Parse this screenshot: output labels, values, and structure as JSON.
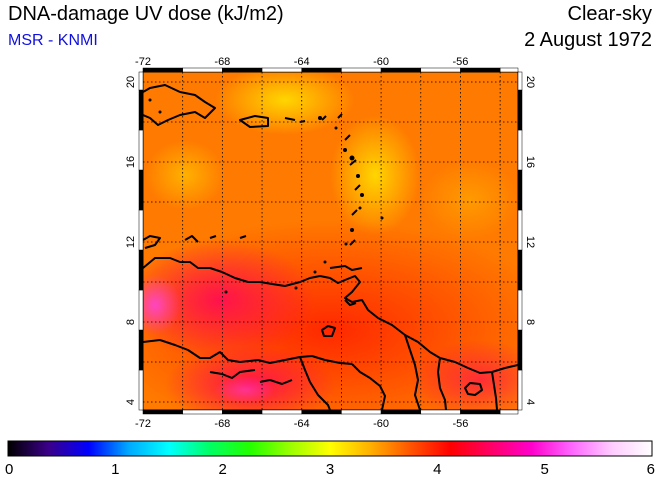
{
  "title": "DNA-damage UV dose (kJ/m2)",
  "subtitle": "MSR - KNMI",
  "condition": "Clear-sky",
  "date": "2 August 1972",
  "map": {
    "lon_ticks": [
      "-72",
      "-68",
      "-64",
      "-60",
      "-56"
    ],
    "lat_ticks": [
      "20",
      "16",
      "12",
      "8",
      "4"
    ],
    "grid": true
  },
  "colorbar": {
    "ticks": [
      "0",
      "1",
      "2",
      "3",
      "4",
      "5",
      "6"
    ],
    "colors": [
      "#000000",
      "#3a0088",
      "#0000ff",
      "#00aaff",
      "#00ffff",
      "#00ff66",
      "#22ff00",
      "#99ff00",
      "#ffff00",
      "#ffb000",
      "#ff5500",
      "#ff0000",
      "#ff0066",
      "#ff00cc",
      "#ff66ff",
      "#ffccff",
      "#ffffff"
    ]
  }
}
